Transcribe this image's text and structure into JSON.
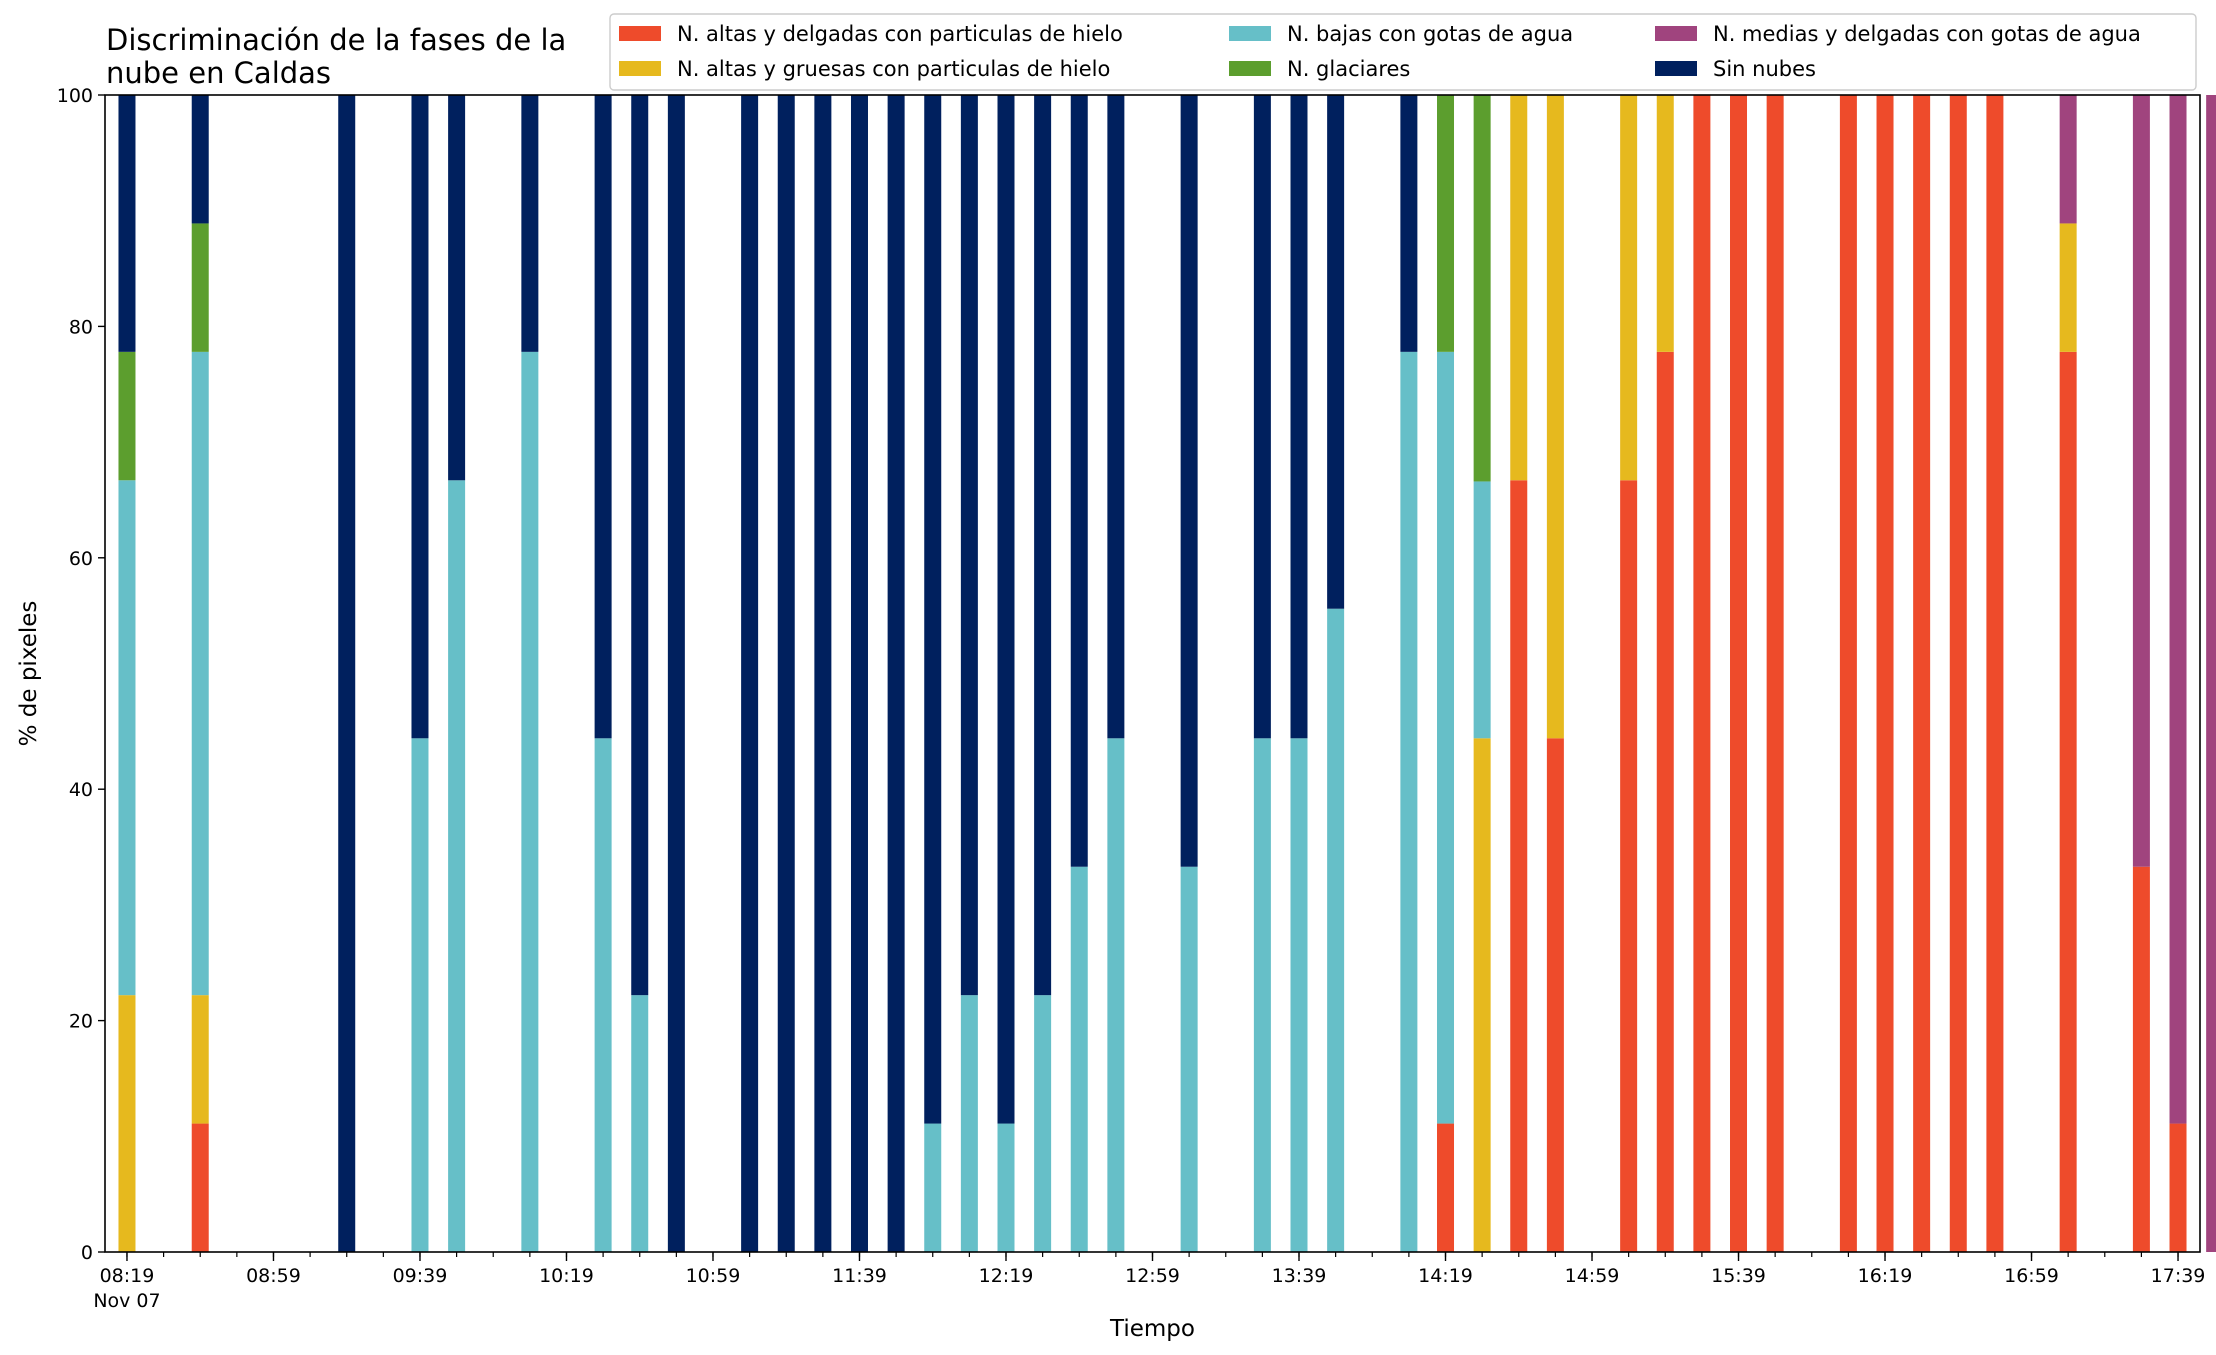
{
  "chart_data": {
    "type": "bar",
    "stacked": true,
    "title_lines": [
      "Discriminación de la fases de la",
      "nube en Caldas"
    ],
    "xlabel": "Tiempo",
    "ylabel": "% de pixeles",
    "ylim": [
      0,
      100
    ],
    "yticks": [
      0,
      20,
      40,
      60,
      80,
      100
    ],
    "x_unit": "minutes from 08:19",
    "xlim": [
      -6,
      566
    ],
    "xtick_labels": [
      {
        "t": 0,
        "label": "08:19",
        "sub": "Nov 07"
      },
      {
        "t": 40,
        "label": "08:59"
      },
      {
        "t": 80,
        "label": "09:39"
      },
      {
        "t": 120,
        "label": "10:19"
      },
      {
        "t": 160,
        "label": "10:59"
      },
      {
        "t": 200,
        "label": "11:39"
      },
      {
        "t": 240,
        "label": "12:19"
      },
      {
        "t": 280,
        "label": "12:59"
      },
      {
        "t": 320,
        "label": "13:39"
      },
      {
        "t": 360,
        "label": "14:19"
      },
      {
        "t": 400,
        "label": "14:59"
      },
      {
        "t": 440,
        "label": "15:39"
      },
      {
        "t": 480,
        "label": "16:19"
      },
      {
        "t": 520,
        "label": "16:59"
      },
      {
        "t": 560,
        "label": "17:39"
      }
    ],
    "minor_step": 10,
    "legend_position": "top-right",
    "series": [
      {
        "name": "N. altas y delgadas con particulas de hielo",
        "color": "#EE4B2B"
      },
      {
        "name": "N. altas y gruesas con particulas de hielo",
        "color": "#E6B91E"
      },
      {
        "name": "N. bajas con gotas de agua",
        "color": "#66BFC8"
      },
      {
        "name": "N. glaciares",
        "color": "#5C9E2E"
      },
      {
        "name": "N. medias y delgadas con gotas de agua",
        "color": "#A0447E"
      },
      {
        "name": "Sin nubes",
        "color": "#00205E"
      }
    ],
    "stacks": [
      {
        "t": 0,
        "values": [
          0,
          22.2,
          44.5,
          11.1,
          0,
          22.2
        ]
      },
      {
        "t": 20,
        "values": [
          11.1,
          11.1,
          55.6,
          11.1,
          0,
          11.1
        ]
      },
      {
        "t": 60,
        "values": [
          0,
          0,
          0,
          0,
          0,
          100
        ]
      },
      {
        "t": 80,
        "values": [
          0,
          0,
          44.4,
          0,
          0,
          55.6
        ]
      },
      {
        "t": 90,
        "values": [
          0,
          0,
          66.7,
          0,
          0,
          33.3
        ]
      },
      {
        "t": 110,
        "values": [
          0,
          0,
          77.8,
          0,
          0,
          22.2
        ]
      },
      {
        "t": 130,
        "values": [
          0,
          0,
          44.4,
          0,
          0,
          55.6
        ]
      },
      {
        "t": 140,
        "values": [
          0,
          0,
          22.2,
          0,
          0,
          77.8
        ]
      },
      {
        "t": 150,
        "values": [
          0,
          0,
          0,
          0,
          0,
          100
        ]
      },
      {
        "t": 170,
        "values": [
          0,
          0,
          0,
          0,
          0,
          100
        ]
      },
      {
        "t": 180,
        "values": [
          0,
          0,
          0,
          0,
          0,
          100
        ]
      },
      {
        "t": 190,
        "values": [
          0,
          0,
          0,
          0,
          0,
          100
        ]
      },
      {
        "t": 200,
        "values": [
          0,
          0,
          0,
          0,
          0,
          100
        ]
      },
      {
        "t": 210,
        "values": [
          0,
          0,
          0,
          0,
          0,
          100
        ]
      },
      {
        "t": 220,
        "values": [
          0,
          0,
          11.1,
          0,
          0,
          88.9
        ]
      },
      {
        "t": 230,
        "values": [
          0,
          0,
          22.2,
          0,
          0,
          77.8
        ]
      },
      {
        "t": 240,
        "values": [
          0,
          0,
          11.1,
          0,
          0,
          88.9
        ]
      },
      {
        "t": 250,
        "values": [
          0,
          0,
          22.2,
          0,
          0,
          77.8
        ]
      },
      {
        "t": 260,
        "values": [
          0,
          0,
          33.3,
          0,
          0,
          66.7
        ]
      },
      {
        "t": 270,
        "values": [
          0,
          0,
          44.4,
          0,
          0,
          55.6
        ]
      },
      {
        "t": 290,
        "values": [
          0,
          0,
          33.3,
          0,
          0,
          66.7
        ]
      },
      {
        "t": 310,
        "values": [
          0,
          0,
          44.4,
          0,
          0,
          55.6
        ]
      },
      {
        "t": 320,
        "values": [
          0,
          0,
          44.4,
          0,
          0,
          55.6
        ]
      },
      {
        "t": 330,
        "values": [
          0,
          0,
          55.6,
          0,
          0,
          44.4
        ]
      },
      {
        "t": 350,
        "values": [
          0,
          0,
          77.8,
          0,
          0,
          22.2
        ]
      },
      {
        "t": 360,
        "values": [
          11.1,
          0,
          66.7,
          22.2,
          0,
          0
        ]
      },
      {
        "t": 370,
        "values": [
          0,
          44.4,
          22.2,
          33.4,
          0,
          0
        ]
      },
      {
        "t": 380,
        "values": [
          66.7,
          33.3,
          0,
          0,
          0,
          0
        ]
      },
      {
        "t": 390,
        "values": [
          44.4,
          55.6,
          0,
          0,
          0,
          0
        ]
      },
      {
        "t": 410,
        "values": [
          66.7,
          33.3,
          0,
          0,
          0,
          0
        ]
      },
      {
        "t": 420,
        "values": [
          77.8,
          22.2,
          0,
          0,
          0,
          0
        ]
      },
      {
        "t": 430,
        "values": [
          100,
          0,
          0,
          0,
          0,
          0
        ]
      },
      {
        "t": 440,
        "values": [
          100,
          0,
          0,
          0,
          0,
          0
        ]
      },
      {
        "t": 450,
        "values": [
          100,
          0,
          0,
          0,
          0,
          0
        ]
      },
      {
        "t": 470,
        "values": [
          100,
          0,
          0,
          0,
          0,
          0
        ]
      },
      {
        "t": 480,
        "values": [
          100,
          0,
          0,
          0,
          0,
          0
        ]
      },
      {
        "t": 490,
        "values": [
          100,
          0,
          0,
          0,
          0,
          0
        ]
      },
      {
        "t": 500,
        "values": [
          100,
          0,
          0,
          0,
          0,
          0
        ]
      },
      {
        "t": 510,
        "values": [
          100,
          0,
          0,
          0,
          0,
          0
        ]
      },
      {
        "t": 530,
        "values": [
          77.8,
          11.1,
          0,
          0,
          11.1,
          0
        ]
      },
      {
        "t": 550,
        "values": [
          33.3,
          0,
          0,
          0,
          66.7,
          0
        ]
      },
      {
        "t": 560,
        "values": [
          11.1,
          0,
          0,
          0,
          88.9,
          0
        ]
      },
      {
        "t": 570,
        "values": [
          0,
          0,
          0,
          0,
          100,
          0
        ]
      }
    ]
  }
}
